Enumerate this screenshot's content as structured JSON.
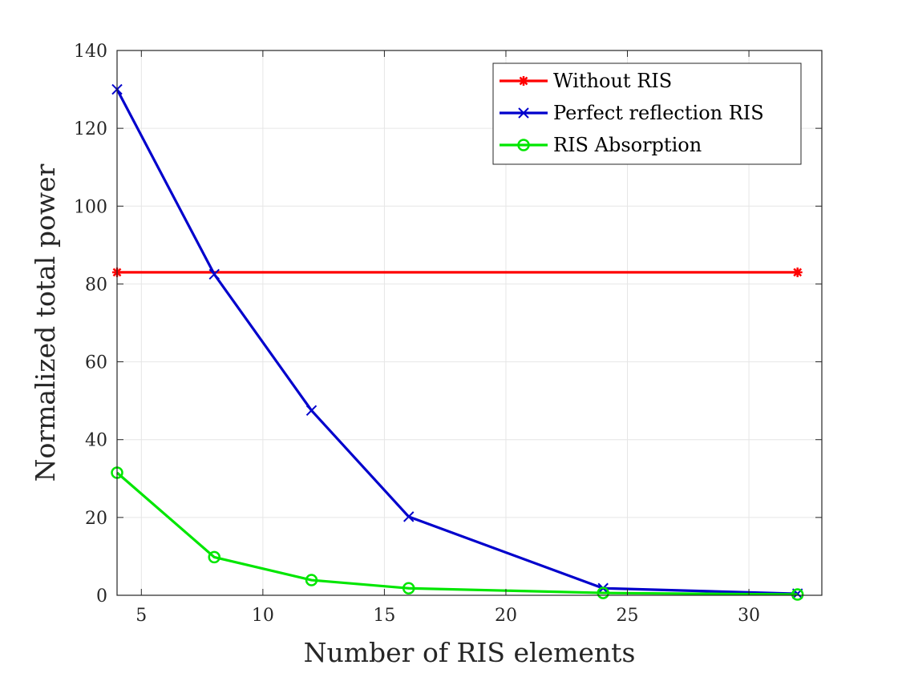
{
  "chart_data": {
    "type": "line",
    "title": "",
    "xlabel": "Number of RIS elements",
    "ylabel": "Normalized total power",
    "xlim": [
      4,
      33
    ],
    "ylim": [
      0,
      140
    ],
    "xticks": [
      5,
      10,
      15,
      20,
      25,
      30
    ],
    "yticks": [
      0,
      20,
      40,
      60,
      80,
      100,
      120,
      140
    ],
    "grid": true,
    "legend_position": "top-right",
    "series": [
      {
        "name": "Without RIS",
        "color": "#ff0000",
        "marker": "asterisk",
        "x": [
          4,
          32
        ],
        "y": [
          83,
          83
        ]
      },
      {
        "name": "Perfect reflection RIS",
        "color": "#0000cc",
        "marker": "x",
        "x": [
          4,
          8,
          12,
          16,
          24,
          32
        ],
        "y": [
          130,
          82.5,
          47.5,
          20.2,
          1.8,
          0.4
        ]
      },
      {
        "name": "RIS Absorption",
        "color": "#00e600",
        "marker": "circle",
        "x": [
          4,
          8,
          12,
          16,
          24,
          32
        ],
        "y": [
          31.5,
          9.8,
          3.9,
          1.8,
          0.6,
          0.2
        ]
      }
    ]
  }
}
